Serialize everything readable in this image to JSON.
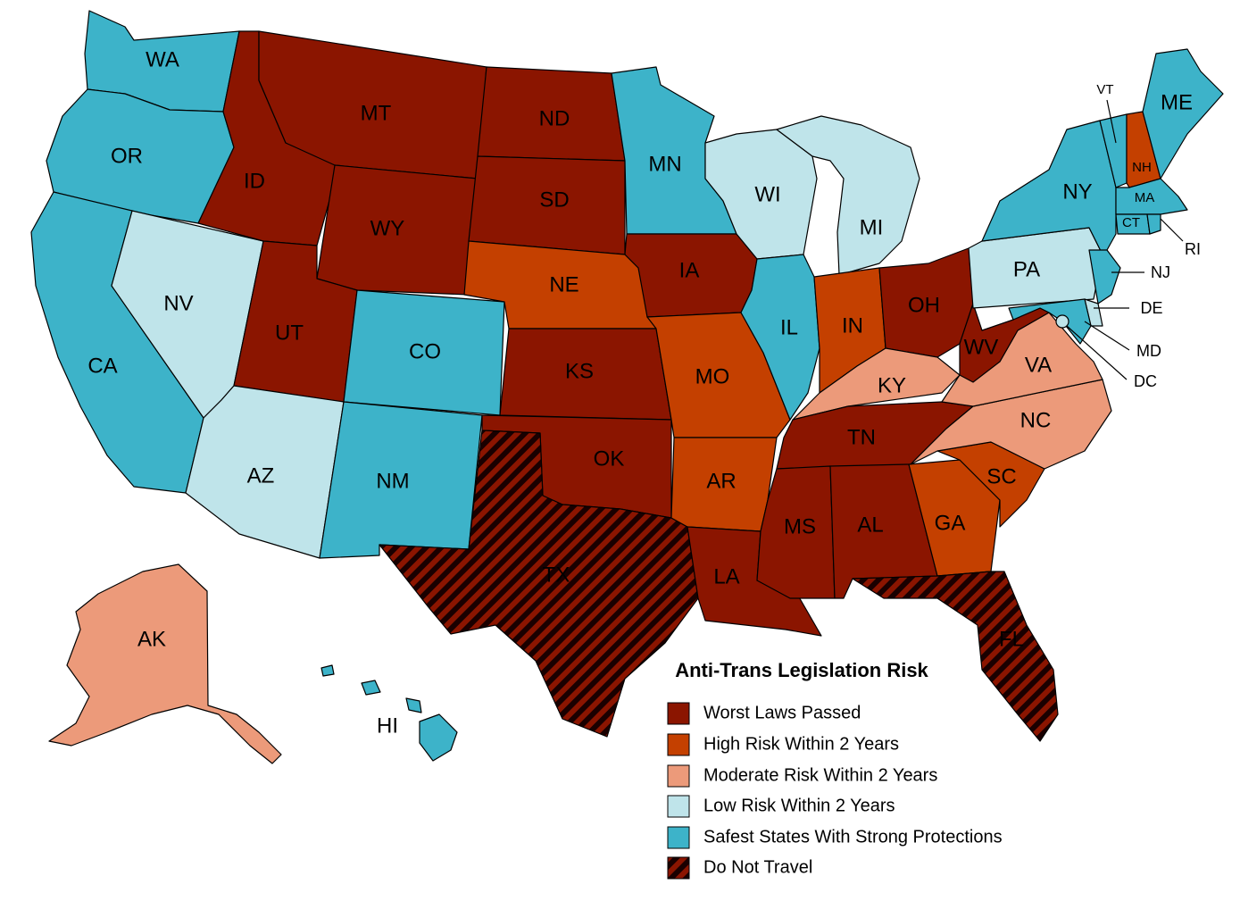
{
  "colors": {
    "worst": "#8b1500",
    "high": "#c44000",
    "moderate": "#ec9a7a",
    "low": "#bfe4ea",
    "safest": "#3db3c9",
    "do_not_travel_a": "#8b1500",
    "do_not_travel_b": "#1a0000"
  },
  "legend": {
    "title": "Anti-Trans Legislation Risk",
    "items": [
      {
        "key": "worst",
        "label": "Worst Laws Passed"
      },
      {
        "key": "high",
        "label": "High Risk Within 2 Years"
      },
      {
        "key": "moderate",
        "label": "Moderate Risk Within 2 Years"
      },
      {
        "key": "low",
        "label": "Low Risk Within 2 Years"
      },
      {
        "key": "safest",
        "label": "Safest States With Strong Protections"
      },
      {
        "key": "dnt",
        "label": "Do Not Travel"
      }
    ]
  },
  "states": {
    "WA": {
      "label": "WA",
      "risk": "safest"
    },
    "OR": {
      "label": "OR",
      "risk": "safest"
    },
    "CA": {
      "label": "CA",
      "risk": "safest"
    },
    "NV": {
      "label": "NV",
      "risk": "low"
    },
    "ID": {
      "label": "ID",
      "risk": "worst"
    },
    "MT": {
      "label": "MT",
      "risk": "worst"
    },
    "WY": {
      "label": "WY",
      "risk": "worst"
    },
    "UT": {
      "label": "UT",
      "risk": "worst"
    },
    "AZ": {
      "label": "AZ",
      "risk": "low"
    },
    "CO": {
      "label": "CO",
      "risk": "safest"
    },
    "NM": {
      "label": "NM",
      "risk": "safest"
    },
    "ND": {
      "label": "ND",
      "risk": "worst"
    },
    "SD": {
      "label": "SD",
      "risk": "worst"
    },
    "NE": {
      "label": "NE",
      "risk": "high"
    },
    "KS": {
      "label": "KS",
      "risk": "worst"
    },
    "OK": {
      "label": "OK",
      "risk": "worst"
    },
    "TX": {
      "label": "TX",
      "risk": "dnt"
    },
    "MN": {
      "label": "MN",
      "risk": "safest"
    },
    "IA": {
      "label": "IA",
      "risk": "worst"
    },
    "MO": {
      "label": "MO",
      "risk": "high"
    },
    "AR": {
      "label": "AR",
      "risk": "high"
    },
    "LA": {
      "label": "LA",
      "risk": "worst"
    },
    "WI": {
      "label": "WI",
      "risk": "low"
    },
    "IL": {
      "label": "IL",
      "risk": "safest"
    },
    "MI": {
      "label": "MI",
      "risk": "low"
    },
    "IN": {
      "label": "IN",
      "risk": "high"
    },
    "OH": {
      "label": "OH",
      "risk": "worst"
    },
    "KY": {
      "label": "KY",
      "risk": "moderate"
    },
    "TN": {
      "label": "TN",
      "risk": "worst"
    },
    "MS": {
      "label": "MS",
      "risk": "worst"
    },
    "AL": {
      "label": "AL",
      "risk": "worst"
    },
    "GA": {
      "label": "GA",
      "risk": "high"
    },
    "FL": {
      "label": "FL",
      "risk": "dnt"
    },
    "SC": {
      "label": "SC",
      "risk": "high"
    },
    "NC": {
      "label": "NC",
      "risk": "moderate"
    },
    "VA": {
      "label": "VA",
      "risk": "moderate"
    },
    "WV": {
      "label": "WV",
      "risk": "worst"
    },
    "PA": {
      "label": "PA",
      "risk": "low"
    },
    "NY": {
      "label": "NY",
      "risk": "safest"
    },
    "VT": {
      "label": "VT",
      "risk": "safest"
    },
    "NH": {
      "label": "NH",
      "risk": "high"
    },
    "ME": {
      "label": "ME",
      "risk": "safest"
    },
    "MA": {
      "label": "MA",
      "risk": "safest"
    },
    "CT": {
      "label": "CT",
      "risk": "safest"
    },
    "RI": {
      "label": "RI",
      "risk": "safest"
    },
    "NJ": {
      "label": "NJ",
      "risk": "safest"
    },
    "DE": {
      "label": "DE",
      "risk": "low"
    },
    "MD": {
      "label": "MD",
      "risk": "safest"
    },
    "DC": {
      "label": "DC",
      "risk": "low"
    },
    "AK": {
      "label": "AK",
      "risk": "moderate"
    },
    "HI": {
      "label": "HI",
      "risk": "safest"
    }
  }
}
